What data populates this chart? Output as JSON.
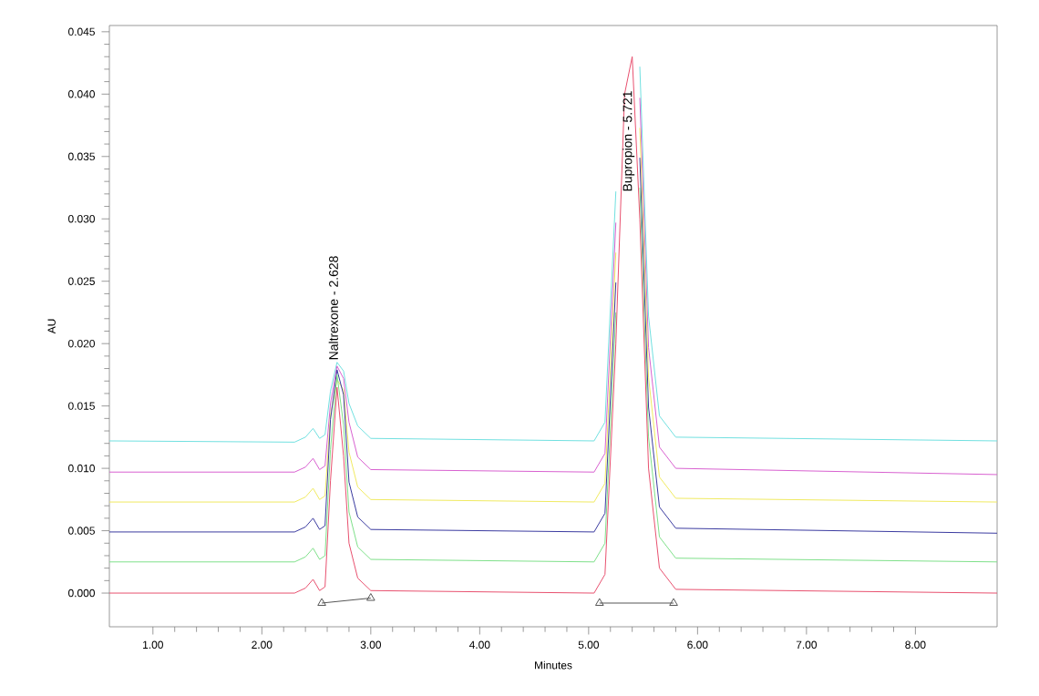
{
  "chart_data": {
    "type": "line",
    "xlabel": "Minutes",
    "ylabel": "AU",
    "x": [
      0.6,
      2.3,
      2.4,
      2.47,
      2.53,
      2.58,
      2.63,
      2.69,
      2.75,
      2.8,
      2.88,
      3.0,
      5.05,
      5.15,
      5.25,
      5.33,
      5.4,
      5.47,
      5.55,
      5.65,
      5.8,
      8.75
    ],
    "xlim": [
      0.6,
      8.75
    ],
    "xticks": [
      {
        "value": 1,
        "label": "1.00"
      },
      {
        "value": 2,
        "label": "2.00"
      },
      {
        "value": 3,
        "label": "3.00"
      },
      {
        "value": 4,
        "label": "4.00"
      },
      {
        "value": 5,
        "label": "5.00"
      },
      {
        "value": 6,
        "label": "6.00"
      },
      {
        "value": 7,
        "label": "7.00"
      },
      {
        "value": 8,
        "label": "8.00"
      }
    ],
    "ylim": [
      -0.0027,
      0.0455
    ],
    "yticks": [
      {
        "value": 0,
        "label": "0.000"
      },
      {
        "value": 0.005,
        "label": "0.005"
      },
      {
        "value": 0.01,
        "label": "0.010"
      },
      {
        "value": 0.015,
        "label": "0.015"
      },
      {
        "value": 0.02,
        "label": "0.020"
      },
      {
        "value": 0.025,
        "label": "0.025"
      },
      {
        "value": 0.03,
        "label": "0.030"
      },
      {
        "value": 0.035,
        "label": "0.035"
      },
      {
        "value": 0.04,
        "label": "0.040"
      },
      {
        "value": 0.045,
        "label": "0.045"
      }
    ],
    "grid": false,
    "marker": "none",
    "line_style": "solid",
    "series": [
      {
        "color": "#70e0e0",
        "values": [
          0.0122,
          0.0121,
          0.0125,
          0.0132,
          0.0124,
          0.0127,
          0.0162,
          0.0185,
          0.0178,
          0.0152,
          0.0134,
          0.0124,
          0.0122,
          0.0137,
          0.0322,
          null,
          null,
          0.0422,
          0.0222,
          0.0142,
          0.0125,
          0.0122
        ]
      },
      {
        "color": "#d860d0",
        "values": [
          0.0097,
          0.0097,
          0.0101,
          0.0108,
          0.0099,
          0.0102,
          0.0152,
          0.0182,
          0.0172,
          0.0137,
          0.0109,
          0.0099,
          0.0097,
          0.0112,
          0.0297,
          null,
          null,
          0.0397,
          0.0197,
          0.0117,
          0.01,
          0.0095
        ]
      },
      {
        "color": "#f0ea60",
        "values": [
          0.0073,
          0.0073,
          0.0077,
          0.0084,
          0.0075,
          0.0078,
          0.0143,
          0.0171,
          0.0163,
          0.0113,
          0.0085,
          0.0075,
          0.0073,
          0.0088,
          0.0273,
          null,
          null,
          0.0373,
          0.0173,
          0.0093,
          0.0076,
          0.0073
        ]
      },
      {
        "color": "#3a3aa0",
        "values": [
          0.0049,
          0.0049,
          0.0053,
          0.006,
          0.0051,
          0.0054,
          0.0139,
          0.0179,
          0.0159,
          0.0089,
          0.0061,
          0.0051,
          0.0049,
          0.0064,
          0.0249,
          null,
          null,
          0.0349,
          0.0149,
          0.0069,
          0.0052,
          0.0048
        ]
      },
      {
        "color": "#7ee08a",
        "values": [
          0.0025,
          0.0025,
          0.0029,
          0.0036,
          0.0027,
          0.003,
          0.0115,
          0.0175,
          0.0135,
          0.0065,
          0.0037,
          0.0027,
          0.0025,
          0.004,
          0.0225,
          null,
          null,
          0.0325,
          0.0125,
          0.0045,
          0.0028,
          0.0025
        ]
      },
      {
        "color": "#e8506e",
        "values": [
          0,
          0,
          0.0004,
          0.0011,
          0.0002,
          0.0005,
          0.009,
          0.0165,
          0.011,
          0.004,
          0.0012,
          0.0002,
          0,
          0.0015,
          0.02,
          0.04,
          0.043,
          0.03,
          0.01,
          0.002,
          0.0003,
          0
        ]
      },
      {
        "type": "line",
        "marker": "triangle",
        "color": "#555555",
        "x": [
          2.55,
          3.0,
          4.0,
          5.1,
          5.78
        ],
        "values": [
          -0.0008,
          -0.0004,
          null,
          -0.0008,
          -0.0008
        ]
      }
    ],
    "annotations": [
      {
        "text": "Naltrexone - 2.628",
        "x": 2.69,
        "y": 0.0185
      },
      {
        "text": "Bupropion - 5.721",
        "x": 5.4,
        "y": 0.032
      }
    ]
  }
}
